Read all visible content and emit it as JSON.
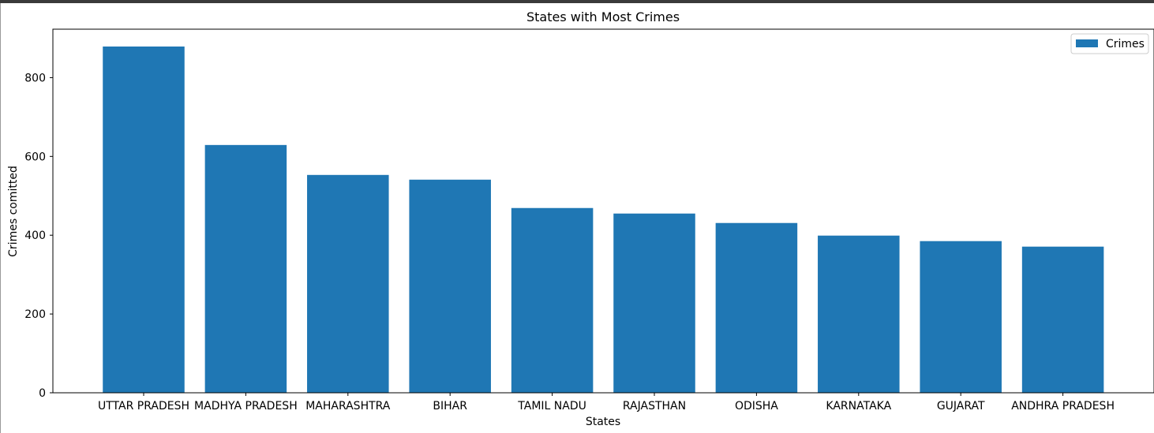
{
  "colors": {
    "bar": "#1f77b4",
    "axis": "#000000",
    "window_frame": "#3a3a3a"
  },
  "chart_data": {
    "type": "bar",
    "title": "States with Most Crimes",
    "xlabel": "States",
    "ylabel": "Crimes comitted",
    "categories": [
      "UTTAR PRADESH",
      "MADHYA PRADESH",
      "MAHARASHTRA",
      "BIHAR",
      "TAMIL NADU",
      "RAJASTHAN",
      "ODISHA",
      "KARNATAKA",
      "GUJARAT",
      "ANDHRA PRADESH"
    ],
    "series": [
      {
        "name": "Crimes",
        "values": [
          879,
          629,
          553,
          541,
          469,
          455,
          431,
          399,
          385,
          371
        ]
      }
    ],
    "yticks": [
      0,
      200,
      400,
      600,
      800
    ],
    "ylim": [
      0,
      923
    ],
    "grid": false,
    "legend_position": "upper right"
  }
}
